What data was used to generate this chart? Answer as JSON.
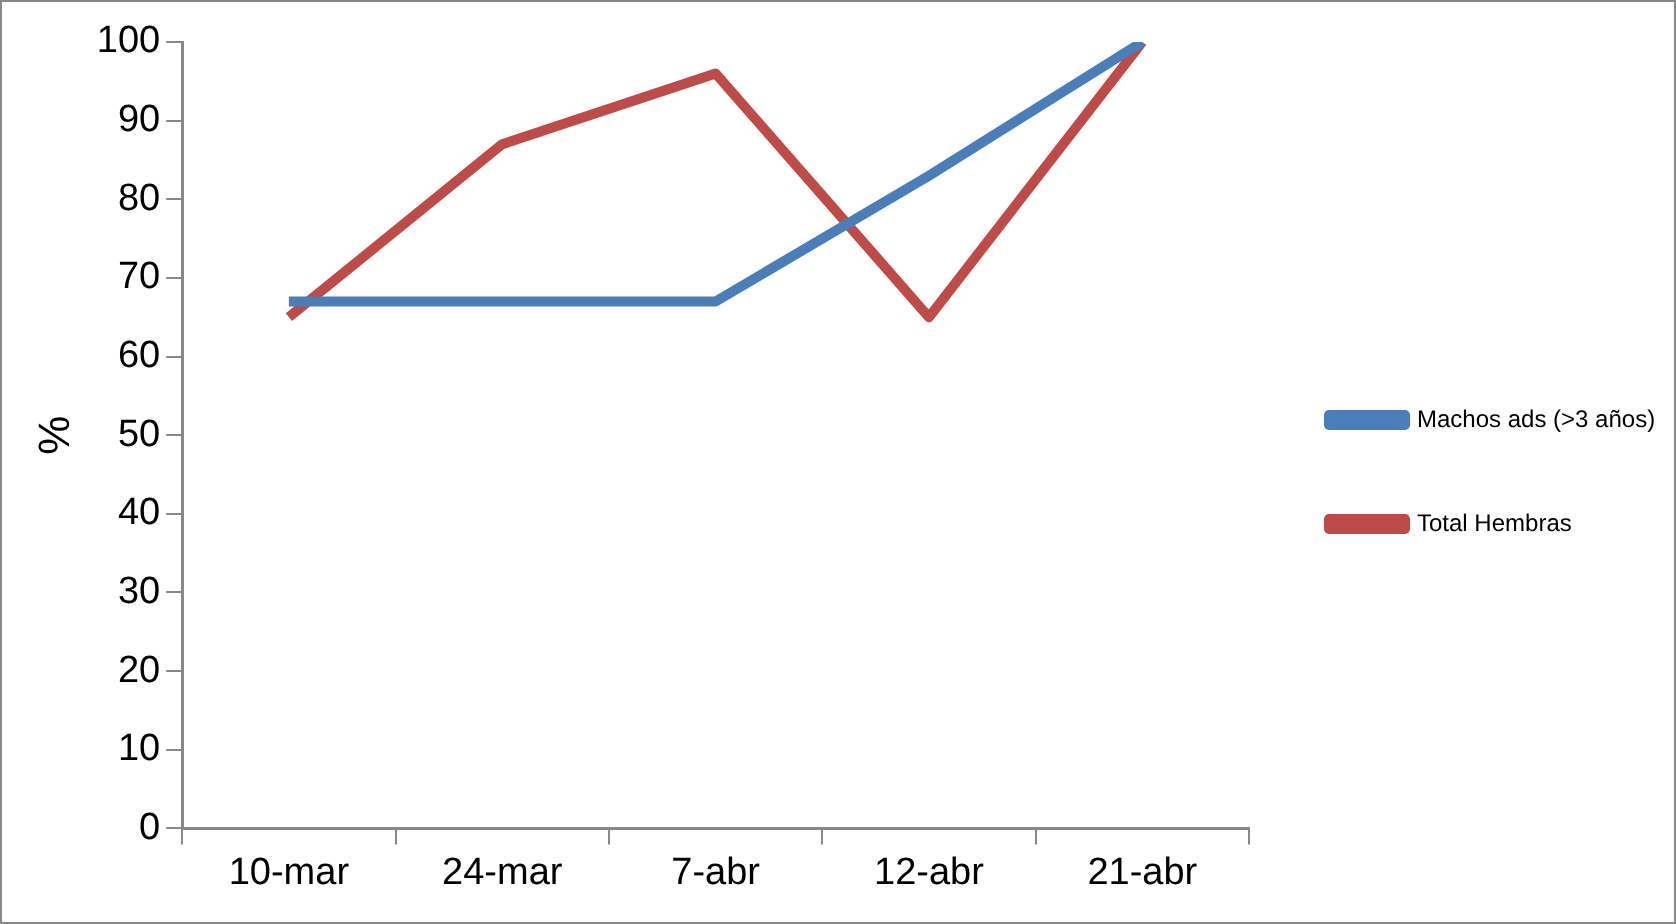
{
  "chart_data": {
    "type": "line",
    "ylabel": "%",
    "categories": [
      "10-mar",
      "24-mar",
      "7-abr",
      "12-abr",
      "21-abr"
    ],
    "series": [
      {
        "name": "Machos ads (>3 años)",
        "color": "#4a7ebb",
        "values": [
          67,
          67,
          67,
          83,
          100
        ]
      },
      {
        "name": "Total Hembras",
        "color": "#be4b48",
        "values": [
          65,
          87,
          96,
          65,
          100
        ]
      }
    ],
    "ylim": [
      0,
      100
    ],
    "yticks": [
      0,
      10,
      20,
      30,
      40,
      50,
      60,
      70,
      80,
      90,
      100
    ],
    "grid": false,
    "legend": "right",
    "marker": "none"
  }
}
